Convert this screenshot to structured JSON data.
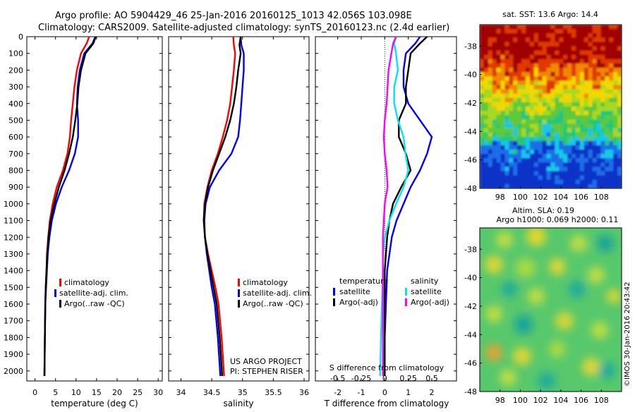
{
  "header": {
    "line1": "Argo profile: AO 5904429_46 25-Jan-2016 20160125_1013 42.056S 103.098E",
    "line2": "Climatology: CARS2009. Satellite-adjusted climatology: synTS_20160123.nc (2.4d earlier)"
  },
  "side_label": "©IMOS 30-Jan-2016 20:43:42",
  "depth_ticks": [
    "0",
    "100",
    "200",
    "300",
    "400",
    "500",
    "600",
    "700",
    "800",
    "900",
    "1000",
    "1100",
    "1200",
    "1300",
    "1400",
    "1500",
    "1600",
    "1700",
    "1800",
    "1900",
    "2000"
  ],
  "chart_data": [
    {
      "type": "line",
      "id": "temperature",
      "xlabel": "temperature (deg C)",
      "xticks": [
        "0",
        "5",
        "10",
        "15",
        "20",
        "25",
        "30"
      ],
      "xlim": [
        -2,
        31
      ],
      "ylim": [
        0,
        2060
      ],
      "legend": [
        "climatology",
        "satellite-adj. clim.",
        "Argo(..raw -QC)"
      ],
      "colors": {
        "climatology": "#ff0000",
        "satellite": "#0000ff",
        "argo": "#000000"
      },
      "series": [
        {
          "name": "climatology",
          "color": "#ff0000",
          "x": [
            13.2,
            12.6,
            11.2,
            10.2,
            9.6,
            9.2,
            8.8,
            8.5,
            7.9,
            6.8,
            5.3,
            4.3,
            3.6,
            3.2,
            2.9,
            2.8,
            2.6,
            2.5,
            2.4,
            2.3
          ],
          "y": [
            0,
            40,
            100,
            200,
            300,
            400,
            500,
            600,
            700,
            800,
            900,
            1000,
            1100,
            1200,
            1300,
            1400,
            1500,
            1600,
            1800,
            2030
          ]
        },
        {
          "name": "satellite-adj. clim.",
          "color": "#0000ff",
          "x": [
            14.7,
            14,
            12,
            10.9,
            10.4,
            10.2,
            10.5,
            10.5,
            9.7,
            8.3,
            6.5,
            5.1,
            4.1,
            3.5,
            3.1,
            2.9,
            2.7,
            2.5,
            2.4,
            2.3
          ],
          "y": [
            0,
            40,
            100,
            200,
            300,
            400,
            500,
            600,
            700,
            800,
            900,
            1000,
            1100,
            1200,
            1300,
            1400,
            1500,
            1600,
            1800,
            2030
          ]
        },
        {
          "name": "Argo(..raw -QC)",
          "color": "#000000",
          "x": [
            14.8,
            14.2,
            12.3,
            11.2,
            10.6,
            10.3,
            9.8,
            9.2,
            8.3,
            7.2,
            5.8,
            4.7,
            3.8,
            3.3,
            3,
            2.8,
            2.6,
            2.5,
            2.4,
            2.3
          ],
          "y": [
            0,
            40,
            100,
            200,
            300,
            400,
            500,
            600,
            700,
            800,
            900,
            1000,
            1100,
            1200,
            1300,
            1400,
            1500,
            1600,
            1800,
            2030
          ]
        }
      ]
    },
    {
      "type": "line",
      "id": "salinity",
      "xlabel": "salinity",
      "xticks": [
        "34",
        "34.5",
        "35",
        "35.5",
        "36"
      ],
      "xlim": [
        33.8,
        36.08
      ],
      "ylim": [
        0,
        2060
      ],
      "legend": [
        "climatology",
        "satellite-adj. clim.",
        "Argo(..raw -QC)"
      ],
      "annotation": [
        "US ARGO PROJECT",
        "PI: STEPHEN RISER"
      ],
      "series": [
        {
          "name": "climatology",
          "color": "#ff0000",
          "x": [
            34.85,
            34.86,
            34.88,
            34.86,
            34.83,
            34.8,
            34.75,
            34.68,
            34.6,
            34.5,
            34.43,
            34.38,
            34.37,
            34.39,
            34.44,
            34.5,
            34.56,
            34.61,
            34.66,
            34.7
          ],
          "y": [
            0,
            50,
            100,
            200,
            300,
            400,
            500,
            600,
            700,
            800,
            900,
            1000,
            1100,
            1200,
            1300,
            1400,
            1500,
            1600,
            1800,
            2030
          ]
        },
        {
          "name": "satellite-adj. clim.",
          "color": "#0000ff",
          "x": [
            34.97,
            34.98,
            35.02,
            35.02,
            35.0,
            34.98,
            34.96,
            34.93,
            34.82,
            34.62,
            34.47,
            34.4,
            34.38,
            34.39,
            34.42,
            34.46,
            34.5,
            34.55,
            34.6,
            34.64
          ],
          "y": [
            0,
            50,
            100,
            200,
            300,
            400,
            500,
            600,
            700,
            800,
            900,
            1000,
            1100,
            1200,
            1300,
            1400,
            1500,
            1600,
            1800,
            2030
          ]
        },
        {
          "name": "Argo(..raw -QC)",
          "color": "#000000",
          "x": [
            34.97,
            34.95,
            34.97,
            34.93,
            34.9,
            34.86,
            34.8,
            34.72,
            34.62,
            34.52,
            34.44,
            34.39,
            34.37,
            34.39,
            34.43,
            34.48,
            34.53,
            34.58,
            34.63,
            34.67
          ],
          "y": [
            0,
            50,
            100,
            200,
            300,
            400,
            500,
            600,
            700,
            800,
            900,
            1000,
            1100,
            1200,
            1300,
            1400,
            1500,
            1600,
            1800,
            2030
          ]
        }
      ]
    },
    {
      "type": "line",
      "id": "difference",
      "xlabel": "T difference from climatology",
      "top_axis_label": "S difference from climatology",
      "xticks": [
        "-2",
        "-1",
        "0",
        "1",
        "2"
      ],
      "sticks": [
        "-0.5",
        "-0.25",
        "0",
        "0.25",
        "0.5"
      ],
      "xlim": [
        -2.95,
        3.05
      ],
      "ylim": [
        0,
        2060
      ],
      "legend_headers": [
        "temperature",
        "salinity"
      ],
      "legend_t": [
        "satellite",
        "Argo(-adj)"
      ],
      "legend_s": [
        "satellite",
        "Argo(-adj)"
      ],
      "series": [
        {
          "name": "satellite (temperature)",
          "color": "#0000ff",
          "x": [
            1.5,
            1.3,
            0.9,
            0.8,
            0.8,
            1.0,
            1.5,
            2.0,
            1.8,
            1.5,
            1.1,
            0.8,
            0.5,
            0.3,
            0.2,
            0.1,
            0.05,
            0.0,
            -0.05
          ],
          "y": [
            0,
            40,
            100,
            200,
            300,
            400,
            500,
            600,
            700,
            800,
            900,
            1000,
            1100,
            1200,
            1300,
            1400,
            1600,
            1800,
            2030
          ]
        },
        {
          "name": "Argo(-adj) (temperature)",
          "color": "#000000",
          "x": [
            1.8,
            1.5,
            1.1,
            1.0,
            0.9,
            0.9,
            0.6,
            0.6,
            0.9,
            1.1,
            0.7,
            0.35,
            0.2,
            0.1,
            0.05,
            0.0,
            0.0,
            0.0,
            0.0
          ],
          "y": [
            0,
            40,
            100,
            200,
            300,
            400,
            500,
            600,
            700,
            800,
            900,
            1000,
            1100,
            1200,
            1300,
            1400,
            1600,
            1800,
            2030
          ]
        },
        {
          "name": "satellite (salinity)",
          "color": "#00e5ee",
          "x": [
            0.12,
            0.1,
            0.12,
            0.14,
            0.1,
            0.1,
            0.14,
            0.2,
            0.22,
            0.25,
            0.2,
            0.12,
            0.05,
            0.0,
            -0.02,
            -0.02,
            -0.03,
            -0.04,
            -0.05
          ],
          "y": [
            0,
            40,
            100,
            200,
            300,
            400,
            500,
            600,
            700,
            800,
            900,
            1000,
            1100,
            1200,
            1300,
            1400,
            1600,
            1800,
            2030
          ]
        },
        {
          "name": "Argo(-adj) (salinity)",
          "color": "#ff00ff",
          "x": [
            0.12,
            0.09,
            0.07,
            0.04,
            0.03,
            0.02,
            0.0,
            -0.01,
            0.0,
            0.02,
            0.03,
            0.0,
            -0.01,
            -0.02,
            -0.02,
            -0.02,
            -0.02,
            -0.02,
            -0.02
          ],
          "y": [
            0,
            40,
            100,
            200,
            300,
            400,
            500,
            600,
            700,
            800,
            900,
            1000,
            1100,
            1200,
            1300,
            1400,
            1600,
            1800,
            2030
          ]
        }
      ]
    },
    {
      "type": "heatmap",
      "id": "sst-map",
      "title": "sat. SST: 13.6 Argo: 14.4",
      "xticks": [
        "98",
        "100",
        "102",
        "104",
        "106",
        "108"
      ],
      "yticks": [
        "-38",
        "-40",
        "-42",
        "-44",
        "-46",
        "-48"
      ],
      "xlim": [
        96,
        110
      ],
      "ylim": [
        -48,
        -36.5
      ],
      "profile": {
        "lon": 103.098,
        "lat": -42.056
      }
    },
    {
      "type": "heatmap",
      "id": "sla-map",
      "title": "Altim. SLA: 0.19",
      "subtitle": "Argo h1000: 0.069 h2000: 0.11",
      "xticks": [
        "98",
        "100",
        "102",
        "104",
        "106",
        "108"
      ],
      "yticks": [
        "-38",
        "-40",
        "-42",
        "-44",
        "-46",
        "-48"
      ],
      "xlim": [
        96,
        110
      ],
      "ylim": [
        -48,
        -36.5
      ]
    }
  ]
}
